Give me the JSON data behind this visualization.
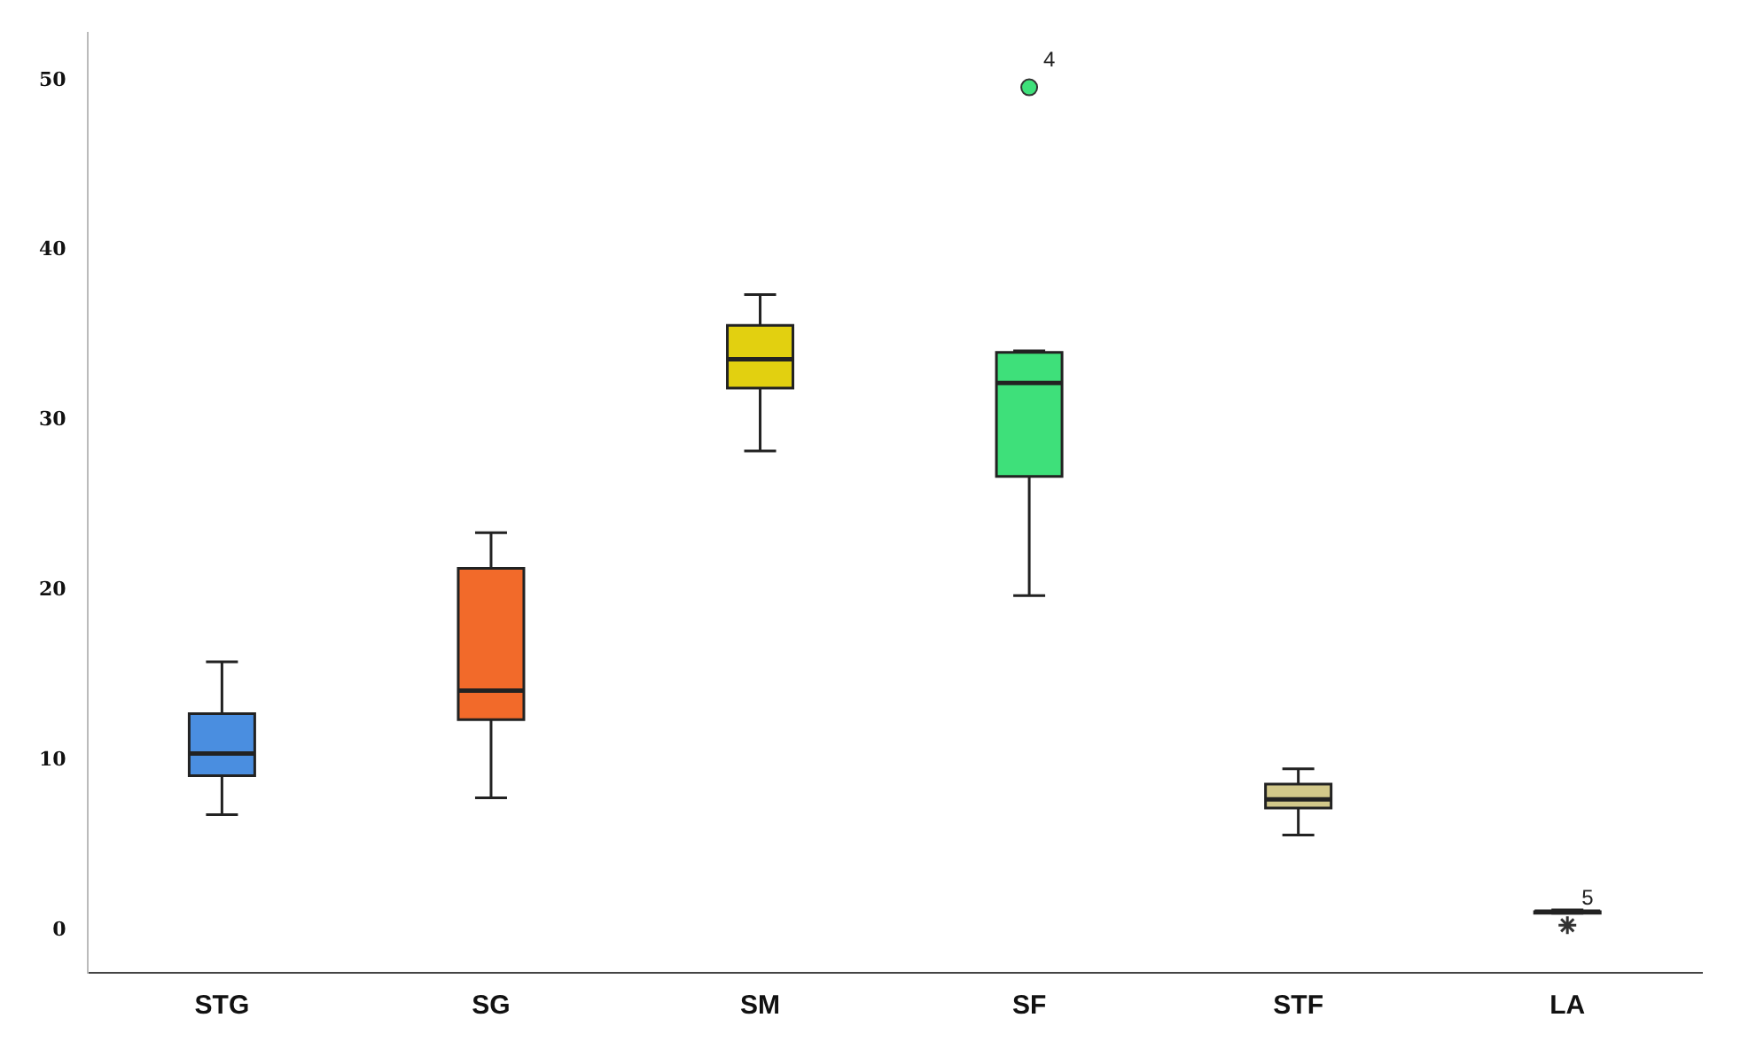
{
  "chart_data": {
    "type": "box",
    "categories": [
      "STG",
      "SG",
      "SM",
      "SF",
      "STF",
      "LA"
    ],
    "colors": [
      "#4a8ee0",
      "#f26a2a",
      "#e2d010",
      "#3ee07a",
      "#d2c88a",
      "#555555"
    ],
    "boxes": [
      {
        "low": 6.8,
        "q1": 9.1,
        "median": 10.4,
        "q3": 12.75,
        "high": 15.8
      },
      {
        "low": 7.8,
        "q1": 12.4,
        "median": 14.1,
        "q3": 21.3,
        "high": 23.4
      },
      {
        "low": 28.2,
        "q1": 31.9,
        "median": 33.6,
        "q3": 35.6,
        "high": 37.4
      },
      {
        "low": 19.7,
        "q1": 26.7,
        "median": 32.2,
        "q3": 34.0,
        "high": 34.1,
        "outliers": [
          49.6
        ]
      },
      {
        "low": 5.6,
        "q1": 7.2,
        "median": 7.7,
        "q3": 8.6,
        "high": 9.5
      },
      {
        "low": 1.0,
        "q1": 1.0,
        "median": 1.1,
        "q3": 1.1,
        "high": 1.2
      }
    ],
    "series": [
      {
        "type": "scatter",
        "x": [
          "LA"
        ],
        "values": [
          0.3
        ],
        "marker": "cross",
        "color": "#333333"
      }
    ],
    "annotations": [
      "4",
      "5"
    ],
    "ylim": [
      -2.5,
      52.8
    ],
    "yticks": [
      0,
      10,
      20,
      30,
      40,
      50
    ],
    "grid": false,
    "legend": false
  }
}
